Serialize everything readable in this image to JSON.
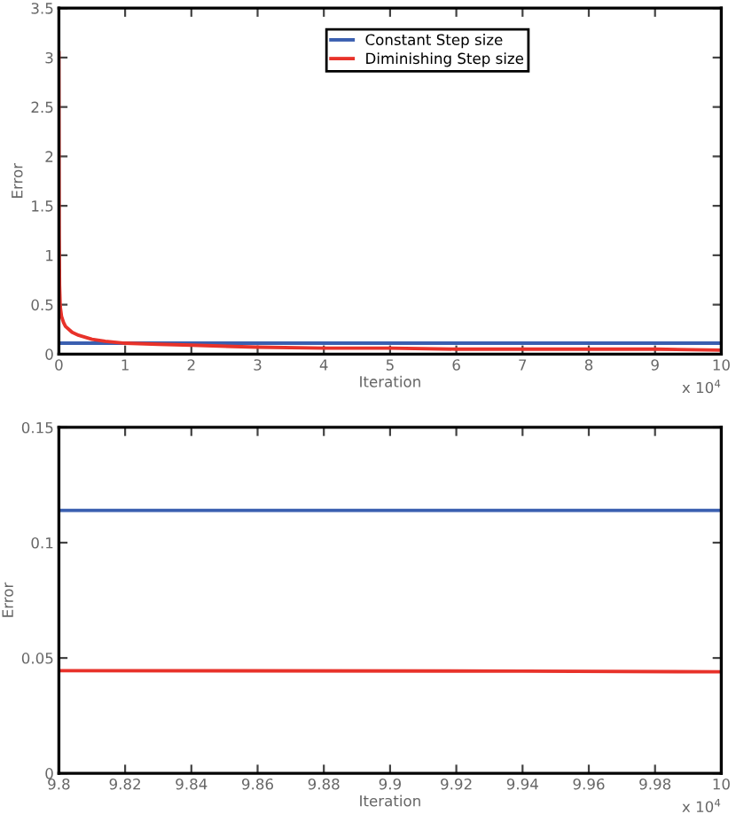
{
  "chart_data": [
    {
      "type": "line",
      "xlabel": "Iteration",
      "ylabel": "Error",
      "xlim": [
        0,
        10
      ],
      "ylim": [
        0,
        3.5
      ],
      "xticks": [
        0,
        1,
        2,
        3,
        4,
        5,
        6,
        7,
        8,
        9,
        10
      ],
      "yticks": [
        0,
        0.5,
        1,
        1.5,
        2,
        2.5,
        3,
        3.5
      ],
      "grid": false,
      "legend": "top right",
      "annotations": [
        "x 10$^{4}$"
      ],
      "series": [
        {
          "name": "Constant Step size",
          "color": "#3a5fb0",
          "x": [
            0,
            10
          ],
          "values": [
            0.11,
            0.11
          ]
        },
        {
          "name": "Diminishing Step size",
          "color": "#e8322a",
          "x": [
            0,
            0.005,
            0.01,
            0.02,
            0.04,
            0.07,
            0.1,
            0.2,
            0.3,
            0.5,
            0.7,
            1,
            1.5,
            2,
            3,
            4,
            5,
            6,
            7,
            8,
            9,
            10
          ],
          "values": [
            3.05,
            1.2,
            0.7,
            0.48,
            0.38,
            0.32,
            0.28,
            0.22,
            0.19,
            0.15,
            0.13,
            0.11,
            0.1,
            0.09,
            0.07,
            0.06,
            0.06,
            0.05,
            0.05,
            0.05,
            0.05,
            0.04
          ]
        }
      ]
    },
    {
      "type": "line",
      "xlabel": "Iteration",
      "ylabel": "Error",
      "xlim": [
        9.8,
        10
      ],
      "ylim": [
        0,
        0.15
      ],
      "xticks": [
        9.8,
        9.82,
        9.84,
        9.86,
        9.88,
        9.9,
        9.92,
        9.94,
        9.96,
        9.98,
        10
      ],
      "yticks": [
        0,
        0.05,
        0.1,
        0.15
      ],
      "grid": false,
      "annotations": [
        "x 10$^{4}$"
      ],
      "series": [
        {
          "color": "#3a5fb0",
          "x": [
            9.8,
            10
          ],
          "values": [
            0.114,
            0.114
          ]
        },
        {
          "color": "#e8322a",
          "x": [
            9.8,
            9.94,
            10
          ],
          "values": [
            0.0445,
            0.0443,
            0.044
          ]
        }
      ]
    }
  ]
}
